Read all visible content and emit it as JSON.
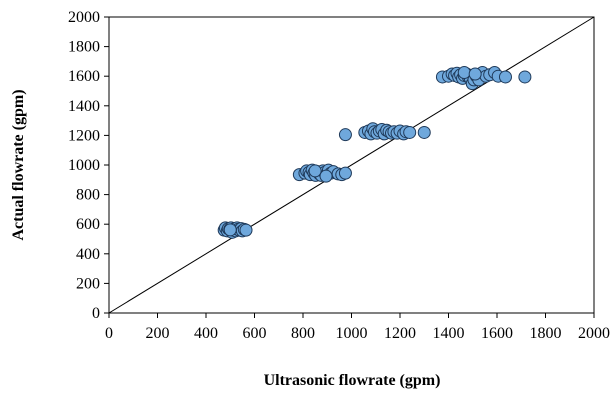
{
  "chart_data": {
    "type": "scatter",
    "xlabel": "Ultrasonic  flowrate (gpm)",
    "ylabel": "Actual flowrate (gpm)",
    "xlim": [
      0,
      2000
    ],
    "ylim": [
      0,
      2000
    ],
    "xticks": [
      0,
      200,
      400,
      600,
      800,
      1000,
      1200,
      1400,
      1600,
      1800,
      2000
    ],
    "yticks": [
      0,
      200,
      400,
      600,
      800,
      1000,
      1200,
      1400,
      1600,
      1800,
      2000
    ],
    "grid": false,
    "legend": "none",
    "marker_fill": "#6fa8dc",
    "marker_edge": "#1f3a5a",
    "reference_line": {
      "x": [
        0,
        2000
      ],
      "y": [
        0,
        2000
      ]
    },
    "series": [
      {
        "points": [
          [
            475,
            560
          ],
          [
            480,
            575
          ],
          [
            488,
            555
          ],
          [
            492,
            570
          ],
          [
            498,
            565
          ],
          [
            503,
            575
          ],
          [
            508,
            545
          ],
          [
            512,
            560
          ],
          [
            518,
            570
          ],
          [
            522,
            555
          ],
          [
            528,
            575
          ],
          [
            532,
            565
          ],
          [
            538,
            560
          ],
          [
            545,
            570
          ],
          [
            550,
            555
          ],
          [
            558,
            565
          ],
          [
            565,
            560
          ],
          [
            500,
            562
          ],
          [
            785,
            935
          ],
          [
            808,
            945
          ],
          [
            815,
            960
          ],
          [
            825,
            950
          ],
          [
            830,
            935
          ],
          [
            838,
            965
          ],
          [
            845,
            945
          ],
          [
            852,
            930
          ],
          [
            860,
            955
          ],
          [
            868,
            940
          ],
          [
            875,
            930
          ],
          [
            882,
            960
          ],
          [
            890,
            950
          ],
          [
            898,
            935
          ],
          [
            905,
            965
          ],
          [
            915,
            945
          ],
          [
            925,
            955
          ],
          [
            945,
            940
          ],
          [
            960,
            935
          ],
          [
            975,
            945
          ],
          [
            850,
            960
          ],
          [
            895,
            925
          ],
          [
            975,
            1205
          ],
          [
            1055,
            1220
          ],
          [
            1070,
            1230
          ],
          [
            1080,
            1210
          ],
          [
            1088,
            1245
          ],
          [
            1095,
            1225
          ],
          [
            1105,
            1215
          ],
          [
            1115,
            1230
          ],
          [
            1125,
            1240
          ],
          [
            1135,
            1210
          ],
          [
            1145,
            1235
          ],
          [
            1155,
            1225
          ],
          [
            1165,
            1215
          ],
          [
            1175,
            1225
          ],
          [
            1188,
            1215
          ],
          [
            1200,
            1230
          ],
          [
            1215,
            1210
          ],
          [
            1225,
            1225
          ],
          [
            1240,
            1220
          ],
          [
            1300,
            1220
          ],
          [
            1375,
            1595
          ],
          [
            1400,
            1600
          ],
          [
            1415,
            1615
          ],
          [
            1425,
            1605
          ],
          [
            1435,
            1620
          ],
          [
            1442,
            1595
          ],
          [
            1450,
            1610
          ],
          [
            1458,
            1585
          ],
          [
            1465,
            1605
          ],
          [
            1475,
            1615
          ],
          [
            1482,
            1595
          ],
          [
            1490,
            1585
          ],
          [
            1498,
            1550
          ],
          [
            1505,
            1575
          ],
          [
            1515,
            1600
          ],
          [
            1525,
            1575
          ],
          [
            1540,
            1625
          ],
          [
            1555,
            1600
          ],
          [
            1570,
            1610
          ],
          [
            1590,
            1625
          ],
          [
            1605,
            1600
          ],
          [
            1635,
            1595
          ],
          [
            1715,
            1595
          ],
          [
            1465,
            1625
          ],
          [
            1510,
            1615
          ]
        ]
      }
    ]
  }
}
